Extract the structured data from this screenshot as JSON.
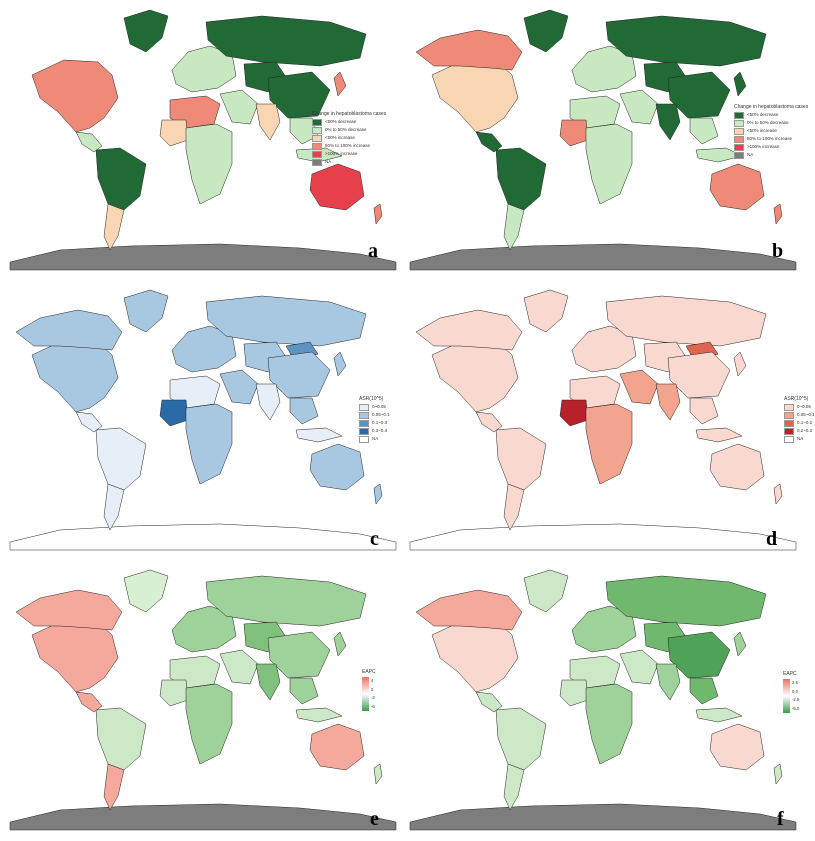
{
  "panels": [
    {
      "id": "a",
      "label": "a",
      "background": "#2f8a47",
      "legend": {
        "type": "categorical",
        "title": "Change in hepatoblastoma cases",
        "items": [
          {
            "label": "<50% decrease",
            "color": "#216a36"
          },
          {
            "label": "0% to 50% decrease",
            "color": "#c8e8c2"
          },
          {
            "label": "<50% increase",
            "color": "#f8d6b3"
          },
          {
            "label": "50% to 100% increase",
            "color": "#f08a78"
          },
          {
            "label": ">100% increase",
            "color": "#e6414a"
          },
          {
            "label": "NA",
            "color": "#7d7d7d"
          }
        ]
      },
      "regions": {
        "north_america": "#f08a78",
        "greenland": "#216a36",
        "central_america": "#c8e8c2",
        "south_america": "#216a36",
        "southern_cone": "#f8d6b3",
        "europe": "#c8e8c2",
        "russia": "#216a36",
        "middle_east": "#c8e8c2",
        "north_africa": "#f08a78",
        "africa": "#c8e8c2",
        "west_africa": "#f8d6b3",
        "central_asia": "#216a36",
        "china": "#216a36",
        "india": "#f8d6b3",
        "southeast_asia": "#c8e8c2",
        "indonesia": "#c8e8c2",
        "japan": "#f08a78",
        "australia": "#e6414a",
        "new_zealand": "#f08a78",
        "antarctica": "#7d7d7d"
      }
    },
    {
      "id": "b",
      "label": "b",
      "legend": {
        "type": "categorical",
        "title": "Change in hepatoblastoma cases",
        "items": [
          {
            "label": "<50% decrease",
            "color": "#216a36"
          },
          {
            "label": "0% to 50% decrease",
            "color": "#c8e8c2"
          },
          {
            "label": "<50% increase",
            "color": "#f8d6b3"
          },
          {
            "label": "50% to 100% increase",
            "color": "#f08a78"
          },
          {
            "label": ">100% increase",
            "color": "#e6414a"
          },
          {
            "label": "NA",
            "color": "#7d7d7d"
          }
        ]
      },
      "regions": {
        "north_america": "#f8d6b3",
        "canada": "#f08a78",
        "greenland": "#216a36",
        "central_america": "#216a36",
        "south_america": "#216a36",
        "southern_cone": "#c8e8c2",
        "europe": "#c8e8c2",
        "russia": "#216a36",
        "middle_east": "#c8e8c2",
        "north_africa": "#c8e8c2",
        "africa": "#c8e8c2",
        "west_africa": "#f08a78",
        "central_asia": "#216a36",
        "china": "#216a36",
        "india": "#216a36",
        "southeast_asia": "#c8e8c2",
        "indonesia": "#c8e8c2",
        "japan": "#216a36",
        "australia": "#f08a78",
        "new_zealand": "#f08a78",
        "antarctica": "#7d7d7d"
      }
    },
    {
      "id": "c",
      "label": "c",
      "legend": {
        "type": "categorical",
        "title": "ASR(10^5)",
        "items": [
          {
            "label": "0~0.05",
            "color": "#e6eef8"
          },
          {
            "label": "0.05~0.1",
            "color": "#a8c8e1"
          },
          {
            "label": "0.1~0.3",
            "color": "#5a93c4"
          },
          {
            "label": "0.3~0.4",
            "color": "#2a6aa6"
          },
          {
            "label": "NA",
            "color": "#ffffff"
          }
        ]
      },
      "regions": {
        "north_america": "#a8c8e1",
        "canada": "#a8c8e1",
        "greenland": "#a8c8e1",
        "central_america": "#e6eef8",
        "south_america": "#e6eef8",
        "southern_cone": "#e6eef8",
        "europe": "#a8c8e1",
        "russia": "#a8c8e1",
        "middle_east": "#a8c8e1",
        "north_africa": "#e6eef8",
        "africa": "#a8c8e1",
        "west_africa": "#2a6aa6",
        "central_asia": "#a8c8e1",
        "mongolia": "#5a93c4",
        "china": "#a8c8e1",
        "india": "#e6eef8",
        "southeast_asia": "#a8c8e1",
        "indonesia": "#e6eef8",
        "japan": "#a8c8e1",
        "australia": "#a8c8e1",
        "new_zealand": "#a8c8e1",
        "antarctica": "#ffffff"
      }
    },
    {
      "id": "d",
      "label": "d",
      "legend": {
        "type": "categorical",
        "title": "ASR(10^5)",
        "items": [
          {
            "label": "0~0.05",
            "color": "#f9d8d0"
          },
          {
            "label": "0.05~0.1",
            "color": "#f2a48f"
          },
          {
            "label": "0.1~0.2",
            "color": "#e06550"
          },
          {
            "label": "0.2~0.3",
            "color": "#b8202a"
          },
          {
            "label": "NA",
            "color": "#ffffff"
          }
        ]
      },
      "regions": {
        "north_america": "#f9d8d0",
        "canada": "#f9d8d0",
        "greenland": "#f9d8d0",
        "central_america": "#f9d8d0",
        "south_america": "#f9d8d0",
        "southern_cone": "#f9d8d0",
        "europe": "#f9d8d0",
        "russia": "#f9d8d0",
        "middle_east": "#f2a48f",
        "north_africa": "#f9d8d0",
        "africa": "#f2a48f",
        "west_africa": "#b8202a",
        "central_asia": "#f9d8d0",
        "mongolia": "#e06550",
        "china": "#f9d8d0",
        "india": "#f2a48f",
        "southeast_asia": "#f9d8d0",
        "indonesia": "#f9d8d0",
        "japan": "#f9d8d0",
        "australia": "#f9d8d0",
        "new_zealand": "#f9d8d0",
        "antarctica": "#ffffff"
      }
    },
    {
      "id": "e",
      "label": "e",
      "legend": {
        "type": "gradient",
        "title": "EAPC",
        "stops": [
          "#ef6f5e",
          "#ffffff",
          "#3b9a4e"
        ],
        "ticks": [
          "4",
          "0",
          "-3",
          "-6"
        ]
      },
      "regions": {
        "north_america": "#f4a99c",
        "canada": "#f4a99c",
        "greenland": "#d9efd2",
        "central_america": "#f4a99c",
        "south_america": "#cde8c6",
        "southern_cone": "#f4a99c",
        "europe": "#9fd19a",
        "russia": "#9fd19a",
        "middle_east": "#cde8c6",
        "north_africa": "#cde8c6",
        "africa": "#9fd19a",
        "west_africa": "#cde8c6",
        "central_asia": "#7fc07d",
        "china": "#9fd19a",
        "india": "#7fc07d",
        "southeast_asia": "#9fd19a",
        "indonesia": "#cde8c6",
        "japan": "#9fd19a",
        "australia": "#f4a99c",
        "new_zealand": "#cde8c6",
        "antarctica": "#7d7d7d"
      }
    },
    {
      "id": "f",
      "label": "f",
      "legend": {
        "type": "gradient",
        "title": "EAPC",
        "stops": [
          "#ef6f5e",
          "#ffffff",
          "#3b9a4e"
        ],
        "ticks": [
          "2.5",
          "0.0",
          "-2.5",
          "-5.0"
        ]
      },
      "regions": {
        "north_america": "#f9d8d0",
        "canada": "#f4a99c",
        "greenland": "#cde8c6",
        "central_america": "#cde8c6",
        "south_america": "#cde8c6",
        "southern_cone": "#cde8c6",
        "europe": "#9fd19a",
        "russia": "#6fb86e",
        "middle_east": "#cde8c6",
        "north_africa": "#cde8c6",
        "africa": "#9fd19a",
        "west_africa": "#cde8c6",
        "central_asia": "#6fb86e",
        "china": "#4fa356",
        "india": "#9fd19a",
        "southeast_asia": "#6fb86e",
        "indonesia": "#cde8c6",
        "japan": "#9fd19a",
        "australia": "#f9d8d0",
        "new_zealand": "#cde8c6",
        "antarctica": "#7d7d7d"
      }
    }
  ]
}
